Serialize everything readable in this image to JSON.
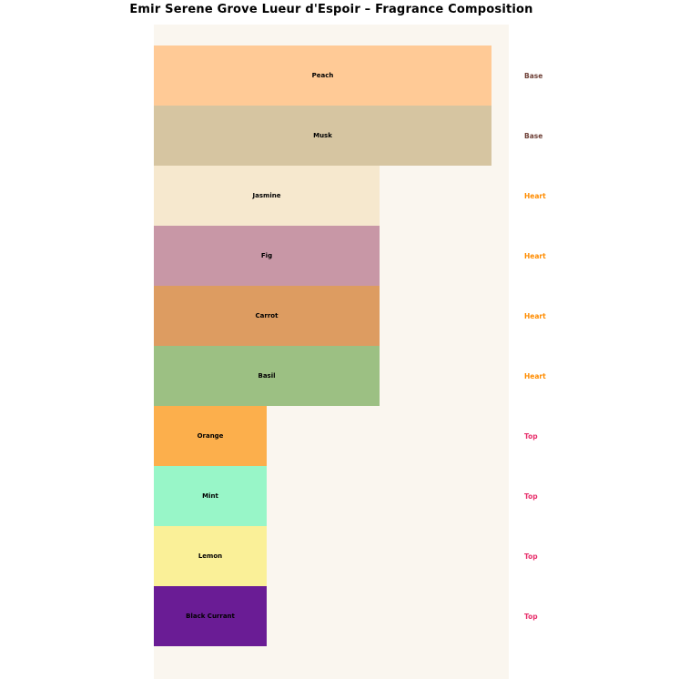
{
  "title": "Emir Serene Grove Lueur d'Espoir – Fragrance Composition",
  "colors": {
    "page_bg": "#FFFFFF",
    "plot_bg": "#FAF6EF",
    "bar_text": "#000000",
    "note_type_colors": {
      "Base": "#6F4138",
      "Heart": "#FF8C00",
      "Top": "#E8306C"
    }
  },
  "chart_data": {
    "type": "bar",
    "orientation": "horizontal",
    "title": "Emir Serene Grove Lueur d'Espoir – Fragrance Composition",
    "xlabel": "",
    "ylabel": "",
    "xlim": [
      0,
      3.15
    ],
    "grid": false,
    "legend": null,
    "categories": [
      "Peach",
      "Musk",
      "Jasmine",
      "Fig",
      "Carrot",
      "Basil",
      "Orange",
      "Mint",
      "Lemon",
      "Black Currant"
    ],
    "values": [
      3,
      3,
      2,
      2,
      2,
      2,
      1,
      1,
      1,
      1
    ],
    "bar_colors": [
      "#FFCA96",
      "#D6C5A1",
      "#F6E8CE",
      "#C897A6",
      "#DD9C61",
      "#9CC083",
      "#FCAF4C",
      "#98F6C8",
      "#FAF098",
      "#6A1C95"
    ],
    "note_types": [
      "Base",
      "Base",
      "Heart",
      "Heart",
      "Heart",
      "Heart",
      "Top",
      "Top",
      "Top",
      "Top"
    ],
    "note_type_colors": {
      "Base": "#6F4138",
      "Heart": "#FF8C00",
      "Top": "#E8306C"
    }
  }
}
